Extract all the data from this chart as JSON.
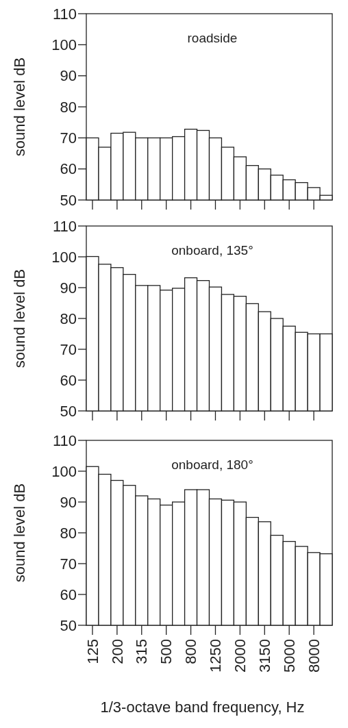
{
  "chart_data": [
    {
      "type": "bar",
      "ylabel": "sound level dB",
      "annotations": [
        "roadside"
      ],
      "categories": [
        "125",
        null,
        "200",
        null,
        "315",
        null,
        "500",
        null,
        "800",
        null,
        "1250",
        null,
        "2000",
        null,
        "3150",
        null,
        "5000",
        null,
        "8000",
        null
      ],
      "color": "#ffffff",
      "values": [
        70,
        67,
        71.5,
        71.8,
        70,
        70,
        70,
        70.4,
        72.8,
        72.4,
        70,
        67,
        63.9,
        61.1,
        60,
        58,
        56.5,
        55.6,
        54,
        51.5
      ],
      "ylim": [
        50,
        110
      ],
      "yticks": [
        50,
        60,
        70,
        80,
        90,
        100,
        110
      ],
      "tick_labels": "y"
    },
    {
      "type": "bar",
      "ylabel": "sound level dB",
      "annotations": [
        "onboard, 135°"
      ],
      "categories": [
        "125",
        null,
        "200",
        null,
        "315",
        null,
        "500",
        null,
        "800",
        null,
        "1250",
        null,
        "2000",
        null,
        "3150",
        null,
        "5000",
        null,
        "8000",
        null
      ],
      "color": "#ffffff",
      "values": [
        100.1,
        97.6,
        96.5,
        94.3,
        90.7,
        90.7,
        89.2,
        89.8,
        93.2,
        92.3,
        90.2,
        87.8,
        87.2,
        84.8,
        82.2,
        80,
        77.5,
        75.5,
        75,
        75
      ],
      "ylim": [
        50,
        110
      ],
      "yticks": [
        50,
        60,
        70,
        80,
        90,
        100,
        110
      ],
      "tick_labels": "y"
    },
    {
      "type": "bar",
      "ylabel": "sound level dB",
      "xlabel": "1/3-octave band frequency, Hz",
      "annotations": [
        "onboard, 180°"
      ],
      "categories": [
        "125",
        null,
        "200",
        null,
        "315",
        null,
        "500",
        null,
        "800",
        null,
        "1250",
        null,
        "2000",
        null,
        "3150",
        null,
        "5000",
        null,
        "8000",
        null
      ],
      "color": "#ffffff",
      "values": [
        101.5,
        99,
        97,
        95.4,
        92,
        91,
        89,
        90,
        94,
        94,
        91,
        90.6,
        90,
        85,
        83.6,
        79.2,
        77.2,
        75.6,
        73.6,
        73.2
      ],
      "ylim": [
        50,
        110
      ],
      "yticks": [
        50,
        60,
        70,
        80,
        90,
        100,
        110
      ]
    }
  ]
}
